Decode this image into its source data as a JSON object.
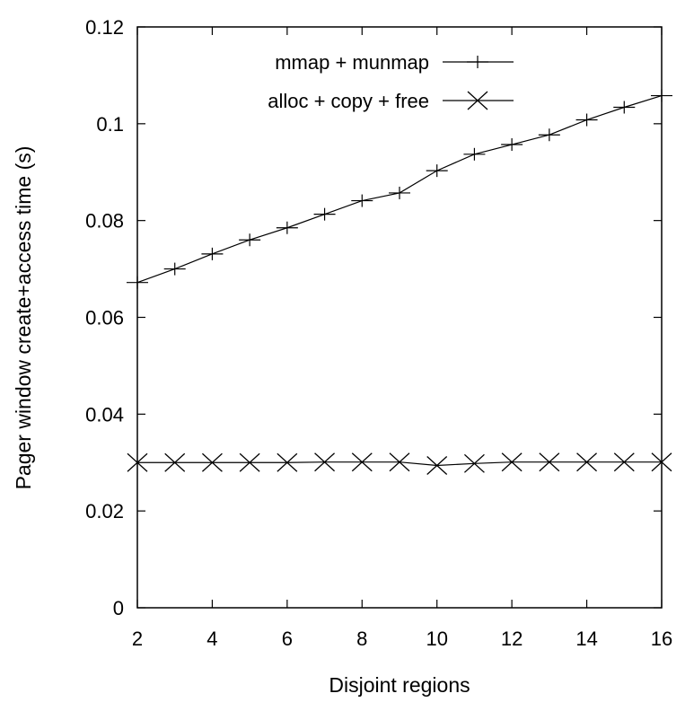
{
  "chart_data": {
    "type": "line",
    "xlabel": "Disjoint regions",
    "ylabel": "Pager window create+access time (s)",
    "xlim": [
      2,
      16
    ],
    "ylim": [
      0,
      0.12
    ],
    "xticks": [
      2,
      4,
      6,
      8,
      10,
      12,
      14,
      16
    ],
    "xtick_labels": [
      "2",
      "4",
      "6",
      "8",
      "10",
      "12",
      "14",
      "16"
    ],
    "yticks": [
      0,
      0.02,
      0.04,
      0.06,
      0.08,
      0.1,
      0.12
    ],
    "ytick_labels": [
      "0",
      "0.02",
      "0.04",
      "0.06",
      "0.08",
      "0.1",
      "0.12"
    ],
    "grid": false,
    "legend_position": "top-right",
    "x": [
      2,
      3,
      4,
      5,
      6,
      7,
      8,
      9,
      10,
      11,
      12,
      13,
      14,
      15,
      16
    ],
    "series": [
      {
        "name": "mmap + munmap",
        "marker": "plus",
        "color": "#000000",
        "values": [
          0.0672,
          0.07,
          0.0731,
          0.076,
          0.0785,
          0.0813,
          0.0841,
          0.0857,
          0.0903,
          0.0937,
          0.0957,
          0.0977,
          0.1008,
          0.1034,
          0.1058
        ]
      },
      {
        "name": "alloc + copy + free",
        "marker": "cross",
        "color": "#000000",
        "values": [
          0.03,
          0.03,
          0.03,
          0.03,
          0.03,
          0.0301,
          0.0301,
          0.0301,
          0.0294,
          0.0298,
          0.0301,
          0.0301,
          0.0301,
          0.0301,
          0.0301
        ]
      }
    ]
  }
}
